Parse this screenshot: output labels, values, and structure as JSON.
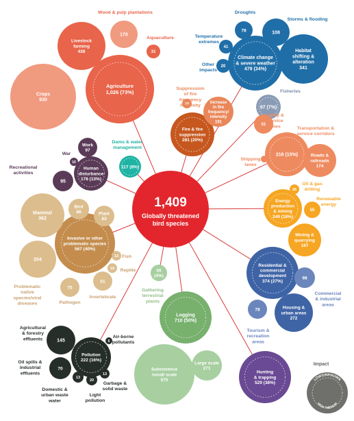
{
  "center": {
    "count": "1,409",
    "label": [
      "Globally threatened",
      "bird species"
    ]
  },
  "categories": [
    {
      "id": "agri",
      "label": [
        "Agriculture",
        "1,026 (73%)"
      ]
    },
    {
      "id": "livestock",
      "label": [
        "Livestock",
        "farming",
        "438"
      ]
    },
    {
      "id": "crops",
      "label": [
        "Crops",
        "930"
      ]
    },
    {
      "id": "wood",
      "label": [
        "170"
      ],
      "outer": [
        "Wood & pulp plantations"
      ]
    },
    {
      "id": "aqua",
      "label": [
        "31"
      ],
      "outer": [
        "Aquaculture"
      ]
    },
    {
      "id": "climate",
      "label": [
        "Climate change",
        "& severe weather",
        "479 (34%)"
      ]
    },
    {
      "id": "droughts",
      "label": [
        "78"
      ],
      "outer": [
        "Droughts"
      ]
    },
    {
      "id": "storms",
      "label": [
        "108"
      ],
      "outer": [
        "Storms & flooding"
      ]
    },
    {
      "id": "temp",
      "label": [
        "41"
      ],
      "outer": [
        "Temperature",
        "extremes"
      ]
    },
    {
      "id": "otherimp",
      "label": [
        "20"
      ],
      "outer": [
        "Other",
        "impacts"
      ]
    },
    {
      "id": "habitat",
      "label": [
        "Habitat",
        "shifting &",
        "alteration",
        "341"
      ]
    },
    {
      "id": "fire",
      "label": [
        "Fire & fire",
        "suppression",
        "281 (20%)"
      ]
    },
    {
      "id": "suppress",
      "label": [
        "10"
      ],
      "outer": [
        "Suppression",
        "of fire",
        "frequency",
        "/intensity"
      ]
    },
    {
      "id": "increase",
      "label": [
        "Increase",
        "in fire",
        "frequency/",
        "intensity",
        "191"
      ]
    },
    {
      "id": "fisheries",
      "label": [
        "97 (7%)"
      ],
      "outer": [
        "Fisheries"
      ]
    },
    {
      "id": "transport",
      "label": [
        "216 (15%)"
      ],
      "outer": [
        "Transportation &",
        "service corridors"
      ]
    },
    {
      "id": "utility",
      "label": [
        "51"
      ],
      "outer": [
        "Utility &",
        "service",
        "lines"
      ]
    },
    {
      "id": "shipping",
      "label": [],
      "outer": [
        "Shipping",
        "lanes"
      ]
    },
    {
      "id": "roads",
      "label": [
        "Roads &",
        "railroads",
        "174"
      ]
    },
    {
      "id": "energy",
      "label": [
        "Energy",
        "production",
        "& mining",
        "249 (18%)"
      ]
    },
    {
      "id": "oilgas",
      "label": [
        "26"
      ],
      "outer": [
        "Oil & gas",
        "drilling"
      ]
    },
    {
      "id": "renew",
      "label": [
        "55"
      ],
      "outer": [
        "Renewable",
        "energy"
      ]
    },
    {
      "id": "mining",
      "label": [
        "Mining &",
        "quarrying",
        "197"
      ]
    },
    {
      "id": "residential",
      "label": [
        "Residential &",
        "commercial",
        "development",
        "374 (27%)"
      ]
    },
    {
      "id": "comm",
      "label": [
        "98"
      ],
      "outer": [
        "Commercial",
        "& industrial",
        "areas"
      ]
    },
    {
      "id": "tourism",
      "label": [
        "78"
      ],
      "outer": [
        "Tourism &",
        "recreation",
        "areas"
      ]
    },
    {
      "id": "housing",
      "label": [
        "Housing &",
        "urban areas",
        "272"
      ]
    },
    {
      "id": "hunting",
      "label": [
        "Hunting",
        "& trapping",
        "529 (38%)"
      ]
    },
    {
      "id": "logging",
      "label": [
        "Logging",
        "710 (50%)"
      ]
    },
    {
      "id": "subsist",
      "label": [
        "Subsistence",
        "/small scale",
        "575"
      ]
    },
    {
      "id": "large",
      "label": [
        "Large scale",
        "271"
      ]
    },
    {
      "id": "gathering",
      "label": [
        "56",
        "(4%)"
      ],
      "outer": [
        "Gathering",
        "terrestrial",
        "plants"
      ]
    },
    {
      "id": "pollution",
      "label": [
        "Pollution",
        "222 (16%)"
      ]
    },
    {
      "id": "agrieff",
      "label": [
        "145"
      ],
      "outer": [
        "Agricultural",
        "& forestry",
        "effluents"
      ]
    },
    {
      "id": "oilspill",
      "label": [
        "70"
      ],
      "outer": [
        "Oil spills &",
        "industrial",
        "effluents"
      ]
    },
    {
      "id": "airborne",
      "label": [
        "6"
      ],
      "outer": [
        "Air-borne",
        "pollutants"
      ]
    },
    {
      "id": "domestic",
      "label": [
        "13"
      ],
      "outer": [
        "Domestic &",
        "urban waste",
        "water"
      ]
    },
    {
      "id": "light",
      "label": [
        "20"
      ],
      "outer": [
        "Light",
        "pollution"
      ]
    },
    {
      "id": "garbage",
      "label": [
        "13"
      ],
      "outer": [
        "Garbage &",
        "solid waste"
      ]
    },
    {
      "id": "invasive",
      "label": [
        "Invasive or other",
        "problematic species",
        "567 (40%)"
      ]
    },
    {
      "id": "mammal",
      "label": [
        "Mammal",
        "362"
      ]
    },
    {
      "id": "bird",
      "label": [
        "Bird",
        "88"
      ]
    },
    {
      "id": "plant",
      "label": [
        "Plant",
        "83"
      ]
    },
    {
      "id": "natives",
      "label": [
        "204"
      ],
      "outer": [
        "Problematic",
        "native",
        "species/viral",
        "diseases"
      ]
    },
    {
      "id": "fish",
      "label": [
        "13"
      ],
      "outer": [
        "Fish"
      ]
    },
    {
      "id": "reptile",
      "label": [
        "19"
      ],
      "outer": [
        "Reptile"
      ]
    },
    {
      "id": "pathogen",
      "label": [
        "75"
      ],
      "outer": [
        "Pathogen"
      ]
    },
    {
      "id": "invert",
      "label": [
        "51"
      ],
      "outer": [
        "Invertebrate"
      ]
    },
    {
      "id": "human",
      "label": [
        "Human",
        "disturbance",
        "178 (13%)"
      ]
    },
    {
      "id": "work",
      "label": [
        "Work",
        "97"
      ]
    },
    {
      "id": "war",
      "label": [
        "10"
      ],
      "outer": [
        "War"
      ]
    },
    {
      "id": "recreation",
      "label": [
        "95"
      ],
      "outer": [
        "Recreational",
        "activities"
      ]
    },
    {
      "id": "dams",
      "label": [
        "117 (8%)"
      ],
      "outer": [
        "Dams & water",
        "management"
      ]
    }
  ],
  "legend": {
    "title": "Impact",
    "ring_labels": [
      "LOW/UNKNOWN",
      "HIGH / MEDIUM"
    ]
  },
  "colors": {
    "center": "#e3262d",
    "agriculture": "#e8644a",
    "agriculture_light": "#f09a7f",
    "climate": "#1f6ea8",
    "fire": "#c6581f",
    "fire_light": "#e9875a",
    "fisheries": "#8a9bb5",
    "transport": "#ee8a5f",
    "energy": "#f6a623",
    "residential": "#3f64a6",
    "hunting": "#6a4a94",
    "logging": "#78b06e",
    "gathering": "#a7cfa0",
    "pollution": "#262e2a",
    "invasive": "#c48d4e",
    "invasive_light": "#dcbd8e",
    "human": "#5a3b57",
    "dams": "#1fb3a3",
    "link": "#d93a3a"
  }
}
